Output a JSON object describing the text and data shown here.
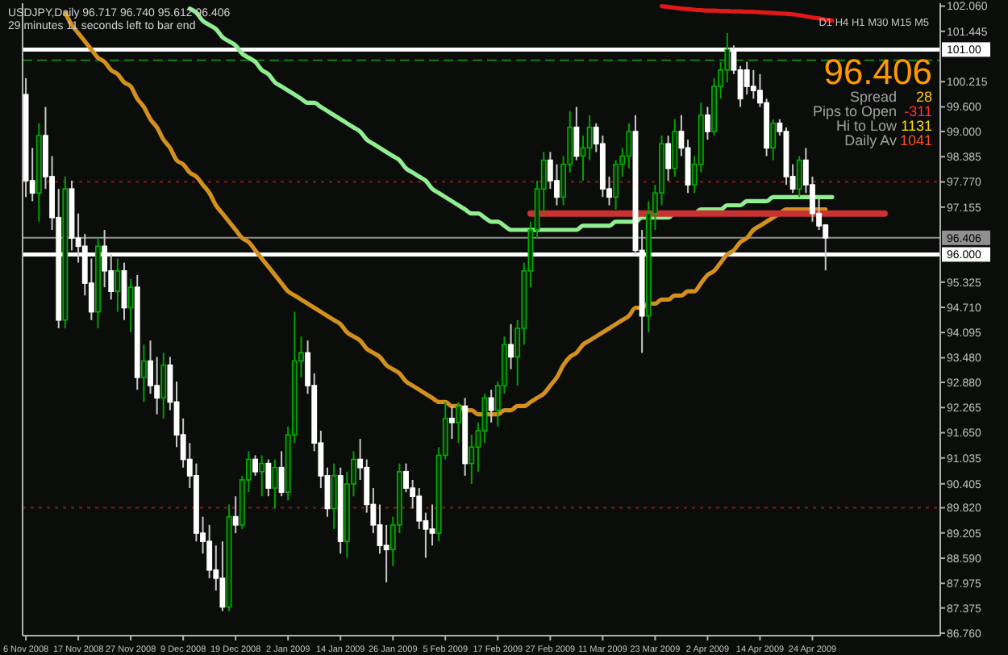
{
  "chart_data": {
    "type": "candlestick",
    "title": "USDJPY,Daily  96.717 96.740 95.612 96.406",
    "subtitle": "29 minutes 11 seconds left to bar end",
    "annotations": [
      "D1 H4 H1 M30 M15 M5",
      "96.406",
      "Spread",
      "28",
      "Pips to Open",
      "-311",
      "Hi to Low",
      "1131",
      "Daily Av",
      "1041"
    ],
    "categories": [
      "6 Nov 2008",
      null,
      null,
      null,
      null,
      null,
      null,
      null,
      "17 Nov 2008",
      null,
      null,
      null,
      null,
      null,
      null,
      null,
      "27 Nov 2008",
      null,
      null,
      null,
      null,
      null,
      null,
      null,
      "9 Dec 2008",
      null,
      null,
      null,
      null,
      null,
      null,
      null,
      "19 Dec 2008",
      null,
      null,
      null,
      null,
      null,
      null,
      null,
      "2 Jan 2009",
      null,
      null,
      null,
      null,
      null,
      null,
      null,
      "14 Jan 2009",
      null,
      null,
      null,
      null,
      null,
      null,
      null,
      "26 Jan 2009",
      null,
      null,
      null,
      null,
      null,
      null,
      null,
      "5 Feb 2009",
      null,
      null,
      null,
      null,
      null,
      null,
      null,
      "17 Feb 2009",
      null,
      null,
      null,
      null,
      null,
      null,
      null,
      "27 Feb 2009",
      null,
      null,
      null,
      null,
      null,
      null,
      null,
      "11 Mar 2009",
      null,
      null,
      null,
      null,
      null,
      null,
      null,
      "23 Mar 2009",
      null,
      null,
      null,
      null,
      null,
      null,
      null,
      "2 Apr 2009",
      null,
      null,
      null,
      null,
      null,
      null,
      null,
      "14 Apr 2009",
      null,
      null,
      null,
      null,
      null,
      null,
      null,
      "24 Apr 2009",
      null,
      null,
      null,
      null,
      null,
      null,
      null,
      null,
      null,
      null,
      null,
      null,
      null,
      null,
      null,
      null,
      null,
      null,
      null
    ],
    "ohlc": [
      [
        99.9,
        100.3,
        97.4,
        97.8
      ],
      [
        97.8,
        98.6,
        97.3,
        97.5
      ],
      [
        97.5,
        99.2,
        96.8,
        98.9
      ],
      [
        98.9,
        99.6,
        97.6,
        97.9
      ],
      [
        97.9,
        98.4,
        96.6,
        96.9
      ],
      [
        96.9,
        97.6,
        94.2,
        94.4
      ],
      [
        94.4,
        97.9,
        94.2,
        97.6
      ],
      [
        97.6,
        97.8,
        96.1,
        96.4
      ],
      [
        96.4,
        97.0,
        95.8,
        96.2
      ],
      [
        96.2,
        96.5,
        95.0,
        95.3
      ],
      [
        95.3,
        95.9,
        94.4,
        94.6
      ],
      [
        94.6,
        96.4,
        94.2,
        96.2
      ],
      [
        96.2,
        96.6,
        95.2,
        95.6
      ],
      [
        95.6,
        96.0,
        94.9,
        95.1
      ],
      [
        95.1,
        95.9,
        94.6,
        95.6
      ],
      [
        95.6,
        95.8,
        94.4,
        94.7
      ],
      [
        94.7,
        95.4,
        94.1,
        95.2
      ],
      [
        95.2,
        95.5,
        92.7,
        93.0
      ],
      [
        93.0,
        93.8,
        92.4,
        93.4
      ],
      [
        93.4,
        93.9,
        92.6,
        92.8
      ],
      [
        92.8,
        93.5,
        92.1,
        92.5
      ],
      [
        92.5,
        93.6,
        92.0,
        93.3
      ],
      [
        93.3,
        93.5,
        92.2,
        92.4
      ],
      [
        92.4,
        92.9,
        91.3,
        91.6
      ],
      [
        91.6,
        92.0,
        90.8,
        91.0
      ],
      [
        91.0,
        91.4,
        90.3,
        90.6
      ],
      [
        90.6,
        90.9,
        89.0,
        89.2
      ],
      [
        89.2,
        89.6,
        88.7,
        89.0
      ],
      [
        89.0,
        89.4,
        88.1,
        88.3
      ],
      [
        88.3,
        88.9,
        87.8,
        88.1
      ],
      [
        88.1,
        89.0,
        87.3,
        87.4
      ],
      [
        87.4,
        89.9,
        87.3,
        89.6
      ],
      [
        89.6,
        90.1,
        89.2,
        89.4
      ],
      [
        89.4,
        90.6,
        89.3,
        90.5
      ],
      [
        90.5,
        91.2,
        90.2,
        91.0
      ],
      [
        91.0,
        91.1,
        90.6,
        90.7
      ],
      [
        90.7,
        91.1,
        90.1,
        90.9
      ],
      [
        90.9,
        91.0,
        90.1,
        90.3
      ],
      [
        90.3,
        91.0,
        89.8,
        90.8
      ],
      [
        90.8,
        91.2,
        90.1,
        90.2
      ],
      [
        90.2,
        91.8,
        90.0,
        91.6
      ],
      [
        91.6,
        94.6,
        91.4,
        93.4
      ],
      [
        93.4,
        94.0,
        93.0,
        93.6
      ],
      [
        93.6,
        93.9,
        92.6,
        92.8
      ],
      [
        92.8,
        93.1,
        91.2,
        91.4
      ],
      [
        91.4,
        91.7,
        90.3,
        90.6
      ],
      [
        90.6,
        90.8,
        89.6,
        89.8
      ],
      [
        89.8,
        90.9,
        89.3,
        90.6
      ],
      [
        90.6,
        90.8,
        88.7,
        89.0
      ],
      [
        89.0,
        90.7,
        88.6,
        90.4
      ],
      [
        90.4,
        91.2,
        90.1,
        91.0
      ],
      [
        91.0,
        91.5,
        90.5,
        90.8
      ],
      [
        90.8,
        91.0,
        89.7,
        89.9
      ],
      [
        89.9,
        90.3,
        89.2,
        89.4
      ],
      [
        89.4,
        89.9,
        88.7,
        88.9
      ],
      [
        88.9,
        89.4,
        88.0,
        88.8
      ],
      [
        88.8,
        89.6,
        88.4,
        89.4
      ],
      [
        89.4,
        90.9,
        89.2,
        90.7
      ],
      [
        90.7,
        90.9,
        90.2,
        90.3
      ],
      [
        90.3,
        90.5,
        89.8,
        90.1
      ],
      [
        90.1,
        90.3,
        89.3,
        89.5
      ],
      [
        89.5,
        89.7,
        88.6,
        89.3
      ],
      [
        89.3,
        89.9,
        88.9,
        89.2
      ],
      [
        89.2,
        91.3,
        89.0,
        91.1
      ],
      [
        91.1,
        92.4,
        91.0,
        92.0
      ],
      [
        92.0,
        92.3,
        91.5,
        91.9
      ],
      [
        91.9,
        92.4,
        91.4,
        92.3
      ],
      [
        92.3,
        92.5,
        90.6,
        90.9
      ],
      [
        90.9,
        91.6,
        90.4,
        91.3
      ],
      [
        91.3,
        91.9,
        90.7,
        91.7
      ],
      [
        91.7,
        92.6,
        91.4,
        92.5
      ],
      [
        92.5,
        92.7,
        91.9,
        92.2
      ],
      [
        92.2,
        92.9,
        91.8,
        92.8
      ],
      [
        92.8,
        94.0,
        92.6,
        93.8
      ],
      [
        93.8,
        94.3,
        93.2,
        93.5
      ],
      [
        93.5,
        94.4,
        92.8,
        94.2
      ],
      [
        94.2,
        95.8,
        93.8,
        95.6
      ],
      [
        95.6,
        96.8,
        95.2,
        96.6
      ],
      [
        96.6,
        97.8,
        96.4,
        97.6
      ],
      [
        97.6,
        98.5,
        97.0,
        98.3
      ],
      [
        98.3,
        98.5,
        97.6,
        97.8
      ],
      [
        97.8,
        98.2,
        97.2,
        97.4
      ],
      [
        97.4,
        98.4,
        97.2,
        98.2
      ],
      [
        98.2,
        99.5,
        98.0,
        99.1
      ],
      [
        99.1,
        99.6,
        98.3,
        98.4
      ],
      [
        98.4,
        98.9,
        97.8,
        98.6
      ],
      [
        98.6,
        99.4,
        98.3,
        99.1
      ],
      [
        99.1,
        99.2,
        98.5,
        98.7
      ],
      [
        98.7,
        98.9,
        97.4,
        97.6
      ],
      [
        97.6,
        97.9,
        97.2,
        97.4
      ],
      [
        97.4,
        98.3,
        97.1,
        98.2
      ],
      [
        98.2,
        98.6,
        97.9,
        98.4
      ],
      [
        98.4,
        99.2,
        98.1,
        99.0
      ],
      [
        99.0,
        99.4,
        96.0,
        96.1
      ],
      [
        96.1,
        96.6,
        93.6,
        94.5
      ],
      [
        94.5,
        97.3,
        94.1,
        97.0
      ],
      [
        97.0,
        97.7,
        96.6,
        97.5
      ],
      [
        97.5,
        98.9,
        97.2,
        98.7
      ],
      [
        98.7,
        98.9,
        97.8,
        98.1
      ],
      [
        98.1,
        99.3,
        97.9,
        99.0
      ],
      [
        99.0,
        99.4,
        98.4,
        98.6
      ],
      [
        98.6,
        98.8,
        97.5,
        97.7
      ],
      [
        97.7,
        98.4,
        97.5,
        98.2
      ],
      [
        98.2,
        99.7,
        98.0,
        99.4
      ],
      [
        99.4,
        99.6,
        98.8,
        99.0
      ],
      [
        99.0,
        100.3,
        98.9,
        100.1
      ],
      [
        100.1,
        100.7,
        99.8,
        100.5
      ],
      [
        100.5,
        101.4,
        100.2,
        101.0
      ],
      [
        101.0,
        101.1,
        100.4,
        100.5
      ],
      [
        100.5,
        100.6,
        99.6,
        99.8
      ],
      [
        100.5,
        100.7,
        99.9,
        100.1
      ],
      [
        100.1,
        100.5,
        99.8,
        100.0
      ],
      [
        100.0,
        100.4,
        99.6,
        99.7
      ],
      [
        99.7,
        99.8,
        98.4,
        98.6
      ],
      [
        98.6,
        99.3,
        98.3,
        99.2
      ],
      [
        99.2,
        99.3,
        98.9,
        99.0
      ],
      [
        99.0,
        99.1,
        97.7,
        97.9
      ],
      [
        97.9,
        98.2,
        97.5,
        97.6
      ],
      [
        97.6,
        98.4,
        97.4,
        98.3
      ],
      [
        98.3,
        98.6,
        97.5,
        97.7
      ],
      [
        97.7,
        97.9,
        96.8,
        97.0
      ],
      [
        97.0,
        97.4,
        96.6,
        96.7
      ],
      [
        96.717,
        96.74,
        95.612,
        96.406
      ],
      null,
      null,
      null,
      null,
      null,
      null,
      null,
      null,
      null,
      null,
      null,
      null,
      null,
      null,
      null,
      null,
      null
    ],
    "series": [
      {
        "type": "line",
        "color": "#d4901c",
        "values": [
          null,
          null,
          null,
          null,
          null,
          null,
          101.9,
          101.6,
          101.4,
          101.2,
          101.0,
          100.8,
          100.7,
          100.5,
          100.4,
          100.2,
          100.1,
          99.8,
          99.6,
          99.3,
          99.1,
          98.8,
          98.6,
          98.3,
          98.2,
          98.0,
          97.9,
          97.7,
          97.5,
          97.2,
          97.0,
          96.8,
          96.6,
          96.4,
          96.3,
          96.1,
          95.9,
          95.7,
          95.5,
          95.3,
          95.1,
          95.0,
          94.9,
          94.8,
          94.7,
          94.6,
          94.5,
          94.4,
          94.3,
          94.1,
          94.0,
          93.9,
          93.7,
          93.6,
          93.5,
          93.3,
          93.2,
          93.1,
          92.9,
          92.8,
          92.7,
          92.6,
          92.5,
          92.4,
          92.4,
          92.3,
          92.3,
          92.2,
          92.2,
          92.1,
          92.1,
          92.1,
          92.1,
          92.2,
          92.2,
          92.3,
          92.3,
          92.4,
          92.5,
          92.6,
          92.8,
          93.0,
          93.3,
          93.5,
          93.6,
          93.8,
          93.9,
          94.0,
          94.1,
          94.2,
          94.3,
          94.4,
          94.5,
          94.7,
          94.7,
          94.8,
          94.8,
          94.9,
          94.9,
          95.0,
          95.0,
          95.1,
          95.1,
          95.3,
          95.5,
          95.6,
          95.8,
          96.0,
          96.1,
          96.3,
          96.4,
          96.6,
          96.7,
          96.8,
          96.9,
          97.0,
          97.1,
          97.1,
          97.1,
          97.1,
          97.1,
          97.1,
          97.1,
          null,
          null,
          null,
          null,
          null,
          null,
          null,
          null,
          null,
          null,
          null,
          null,
          null,
          null,
          null,
          null,
          null
        ]
      },
      {
        "type": "line",
        "color": "#90ee90",
        "values": [
          null,
          null,
          null,
          null,
          null,
          null,
          null,
          null,
          null,
          null,
          null,
          null,
          null,
          null,
          null,
          null,
          null,
          null,
          null,
          null,
          null,
          null,
          null,
          null,
          null,
          102.0,
          101.9,
          101.7,
          101.6,
          101.5,
          101.3,
          101.2,
          101.1,
          100.9,
          100.8,
          100.7,
          100.5,
          100.4,
          100.2,
          100.1,
          100.0,
          99.9,
          99.8,
          99.7,
          99.7,
          99.6,
          99.5,
          99.4,
          99.3,
          99.2,
          99.1,
          99.0,
          98.8,
          98.7,
          98.6,
          98.5,
          98.4,
          98.3,
          98.1,
          98.0,
          97.9,
          97.8,
          97.6,
          97.5,
          97.4,
          97.3,
          97.2,
          97.1,
          97.0,
          97.0,
          96.9,
          96.8,
          96.8,
          96.7,
          96.6,
          96.6,
          96.6,
          96.6,
          96.6,
          96.6,
          96.6,
          96.6,
          96.6,
          96.6,
          96.6,
          96.7,
          96.7,
          96.7,
          96.7,
          96.7,
          96.8,
          96.8,
          96.8,
          96.8,
          96.9,
          96.9,
          96.9,
          96.9,
          96.9,
          97.0,
          97.0,
          97.0,
          97.0,
          97.1,
          97.1,
          97.1,
          97.1,
          97.2,
          97.2,
          97.2,
          97.3,
          97.3,
          97.3,
          97.3,
          97.4,
          97.4,
          97.4,
          97.4,
          97.4,
          97.4,
          97.4,
          97.4,
          97.4,
          97.4,
          null,
          null,
          null,
          null,
          null,
          null,
          null,
          null,
          null,
          null,
          null,
          null,
          null,
          null,
          null,
          null
        ]
      },
      {
        "type": "line",
        "color": "#e01818",
        "values": [
          null,
          null,
          null,
          null,
          null,
          null,
          null,
          null,
          null,
          null,
          null,
          null,
          null,
          null,
          null,
          null,
          null,
          null,
          null,
          null,
          null,
          null,
          null,
          null,
          null,
          null,
          null,
          null,
          null,
          null,
          null,
          null,
          null,
          null,
          null,
          null,
          null,
          null,
          null,
          null,
          null,
          null,
          null,
          null,
          null,
          null,
          null,
          null,
          null,
          null,
          null,
          null,
          null,
          null,
          null,
          null,
          null,
          null,
          null,
          null,
          null,
          null,
          null,
          null,
          null,
          null,
          null,
          null,
          null,
          null,
          null,
          null,
          null,
          null,
          null,
          null,
          null,
          null,
          null,
          null,
          null,
          null,
          null,
          null,
          null,
          null,
          null,
          null,
          null,
          null,
          null,
          null,
          null,
          null,
          null,
          null,
          null,
          102.06,
          102.04,
          102.02,
          102.0,
          101.99,
          101.97,
          101.96,
          101.95,
          101.95,
          101.94,
          101.94,
          101.93,
          101.93,
          101.92,
          101.92,
          101.91,
          101.9,
          101.89,
          101.88,
          101.87,
          101.86,
          101.84,
          101.81,
          101.78,
          101.76,
          101.73,
          101.71,
          null,
          null,
          null,
          null,
          null,
          null,
          null,
          null,
          null,
          null,
          null,
          null,
          null,
          null,
          null,
          null
        ]
      },
      {
        "type": "line",
        "color": "#c83232",
        "values": [
          null,
          null,
          null,
          null,
          null,
          null,
          null,
          null,
          null,
          null,
          null,
          null,
          null,
          null,
          null,
          null,
          null,
          null,
          null,
          null,
          null,
          null,
          null,
          null,
          null,
          null,
          null,
          null,
          null,
          null,
          null,
          null,
          null,
          null,
          null,
          null,
          null,
          null,
          null,
          null,
          null,
          null,
          null,
          null,
          null,
          null,
          null,
          null,
          null,
          null,
          null,
          null,
          null,
          null,
          null,
          null,
          null,
          null,
          null,
          null,
          null,
          null,
          null,
          null,
          null,
          null,
          null,
          null,
          null,
          null,
          null,
          null,
          null,
          null,
          null,
          null,
          null,
          97.0,
          97.0,
          97.0,
          97.0,
          97.0,
          97.0,
          97.0,
          97.0,
          97.0,
          97.0,
          97.0,
          97.0,
          97.0,
          97.0,
          97.0,
          97.0,
          97.0,
          97.0,
          97.0,
          97.0,
          97.0,
          97.0,
          97.0,
          97.0,
          97.0,
          97.0,
          97.0,
          97.0,
          97.0,
          97.0,
          97.0,
          97.0,
          97.0,
          97.0,
          97.0,
          97.0,
          97.0,
          97.0,
          97.0,
          97.0,
          97.0,
          97.0,
          97.0,
          97.0,
          97.0,
          97.0,
          97.0,
          97.0,
          97.0,
          97.0,
          97.0,
          97.0,
          97.0,
          97.0,
          97.0,
          null,
          null,
          null,
          null,
          null,
          null,
          null,
          null
        ]
      }
    ],
    "ref_lines": [
      {
        "axis": "y",
        "value": 101.0,
        "label": "101.00",
        "color": "#ffffff"
      },
      {
        "axis": "y",
        "value": 96.0,
        "label": "96.000",
        "color": "#ffffff"
      },
      {
        "axis": "y",
        "value": 96.406,
        "label": "96.406",
        "color": "#909090"
      },
      {
        "axis": "y",
        "value": 100.74,
        "color": "#108010",
        "line_style": "dashed"
      },
      {
        "axis": "y",
        "value": 97.77,
        "color": "#8b1a1a",
        "line_style": "dotted"
      },
      {
        "axis": "y",
        "value": 89.82,
        "color": "#8b1a1a",
        "line_style": "dotted"
      }
    ],
    "ylim": [
      86.7,
      102.13
    ],
    "yticks": [
      {
        "value": 102.06,
        "label": "102.060"
      },
      {
        "value": 101.445,
        "label": "101.445"
      },
      {
        "value": 100.215,
        "label": "100.215"
      },
      {
        "value": 99.6,
        "label": "99.600"
      },
      {
        "value": 99.0,
        "label": "99.000"
      },
      {
        "value": 98.385,
        "label": "98.385"
      },
      {
        "value": 97.77,
        "label": "97.770"
      },
      {
        "value": 97.155,
        "label": "97.155"
      },
      {
        "value": 95.325,
        "label": "95.325"
      },
      {
        "value": 94.71,
        "label": "94.710"
      },
      {
        "value": 94.095,
        "label": "94.095"
      },
      {
        "value": 93.48,
        "label": "93.480"
      },
      {
        "value": 92.88,
        "label": "92.880"
      },
      {
        "value": 92.265,
        "label": "92.265"
      },
      {
        "value": 91.65,
        "label": "91.650"
      },
      {
        "value": 91.035,
        "label": "91.035"
      },
      {
        "value": 90.405,
        "label": "90.405"
      },
      {
        "value": 89.82,
        "label": "89.820"
      },
      {
        "value": 89.205,
        "label": "89.205"
      },
      {
        "value": 88.59,
        "label": "88.590"
      },
      {
        "value": 87.975,
        "label": "87.975"
      },
      {
        "value": 87.375,
        "label": "87.375"
      },
      {
        "value": 86.76,
        "label": "86.760"
      }
    ]
  }
}
